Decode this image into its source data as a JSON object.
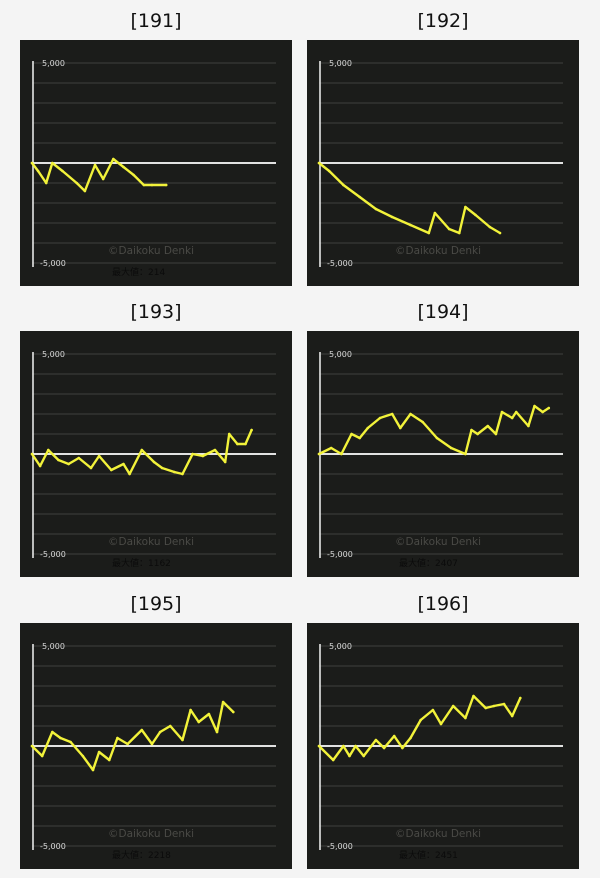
{
  "watermark": "©Daikoku Denki",
  "charts": [
    {
      "title": "[191]",
      "max_label": "最大値：214"
    },
    {
      "title": "[192]",
      "max_label": ""
    },
    {
      "title": "[193]",
      "max_label": "最大値：1162"
    },
    {
      "title": "[194]",
      "max_label": "最大値：2407"
    },
    {
      "title": "[195]",
      "max_label": "最大値：2218"
    },
    {
      "title": "[196]",
      "max_label": "最大値：2451"
    }
  ],
  "colors": {
    "background": "#1b1c1a",
    "line": "#f2f23a",
    "zero_line": "#ffffff",
    "grid": "#3f413d"
  },
  "chart_data": [
    {
      "type": "line",
      "title": "[191]",
      "xlabel": "",
      "ylabel": "",
      "ylim": [
        -5000,
        5000
      ],
      "ytick_labels": [
        "5,000",
        "-5,000"
      ],
      "grid": true,
      "x": [
        0,
        300,
        700,
        1000,
        1500,
        2200,
        2600,
        3100,
        3500,
        4000,
        4500,
        5000,
        5500,
        5900,
        6600
      ],
      "values": [
        0,
        -400,
        -1000,
        0,
        -400,
        -1000,
        -1400,
        -100,
        -800,
        200,
        -200,
        -600,
        -1100,
        -1100,
        -1100
      ]
    },
    {
      "type": "line",
      "title": "[192]",
      "xlabel": "",
      "ylabel": "",
      "ylim": [
        -5000,
        5000
      ],
      "ytick_labels": [
        "5,000",
        "-5,000"
      ],
      "grid": true,
      "x": [
        0,
        500,
        1200,
        2000,
        2800,
        3600,
        4500,
        5400,
        5700,
        6400,
        6900,
        7200,
        7700,
        8400,
        8900
      ],
      "values": [
        0,
        -400,
        -1100,
        -1700,
        -2300,
        -2700,
        -3100,
        -3500,
        -2500,
        -3300,
        -3500,
        -2200,
        -2600,
        -3200,
        -3500
      ]
    },
    {
      "type": "line",
      "title": "[193]",
      "xlabel": "",
      "ylabel": "",
      "ylim": [
        -5000,
        5000
      ],
      "ytick_labels": [
        "5,000",
        "-5,000"
      ],
      "grid": true,
      "x": [
        0,
        400,
        800,
        1300,
        1800,
        2300,
        2900,
        3300,
        3900,
        4500,
        4800,
        5400,
        6000,
        6400,
        7000,
        7400,
        7900,
        8400,
        9000,
        9500,
        9700,
        10100,
        10500,
        10800
      ],
      "values": [
        0,
        -600,
        200,
        -300,
        -500,
        -200,
        -700,
        -100,
        -800,
        -500,
        -1000,
        200,
        -400,
        -700,
        -900,
        -1000,
        0,
        -100,
        200,
        -400,
        1000,
        500,
        500,
        1200
      ]
    },
    {
      "type": "line",
      "title": "[194]",
      "xlabel": "",
      "ylabel": "",
      "ylim": [
        -5000,
        5000
      ],
      "ytick_labels": [
        "5,000",
        "-5,000"
      ],
      "grid": true,
      "x": [
        0,
        600,
        1100,
        1600,
        2000,
        2400,
        3000,
        3600,
        4000,
        4500,
        5100,
        5800,
        6500,
        7200,
        7500,
        7800,
        8300,
        8700,
        9000,
        9500,
        9700,
        10300,
        10600,
        11000,
        11300
      ],
      "values": [
        0,
        300,
        0,
        1000,
        800,
        1300,
        1800,
        2000,
        1300,
        2000,
        1600,
        800,
        300,
        0,
        1200,
        1000,
        1400,
        1000,
        2100,
        1800,
        2100,
        1400,
        2400,
        2100,
        2300
      ]
    },
    {
      "type": "line",
      "title": "[195]",
      "xlabel": "",
      "ylabel": "",
      "ylim": [
        -5000,
        5000
      ],
      "ytick_labels": [
        "5,000",
        "-5,000"
      ],
      "grid": true,
      "x": [
        0,
        500,
        1000,
        1400,
        1900,
        2500,
        3000,
        3300,
        3800,
        4200,
        4700,
        5400,
        5900,
        6300,
        6800,
        7400,
        7800,
        8200,
        8700,
        9100,
        9400,
        9900
      ],
      "values": [
        0,
        -500,
        700,
        400,
        200,
        -500,
        -1200,
        -300,
        -700,
        400,
        100,
        800,
        100,
        700,
        1000,
        300,
        1800,
        1200,
        1600,
        700,
        2200,
        1700
      ]
    },
    {
      "type": "line",
      "title": "[196]",
      "xlabel": "",
      "ylabel": "",
      "ylim": [
        -5000,
        5000
      ],
      "ytick_labels": [
        "5,000",
        "-5,000"
      ],
      "grid": true,
      "x": [
        0,
        700,
        1200,
        1500,
        1800,
        2200,
        2800,
        3200,
        3700,
        4100,
        4500,
        5000,
        5600,
        6000,
        6600,
        7200,
        7600,
        8200,
        8600,
        9100,
        9500,
        9900
      ],
      "values": [
        0,
        -700,
        0,
        -500,
        0,
        -500,
        300,
        -100,
        500,
        -100,
        400,
        1300,
        1800,
        1100,
        2000,
        1400,
        2500,
        1900,
        2000,
        2100,
        1500,
        2400
      ]
    }
  ]
}
